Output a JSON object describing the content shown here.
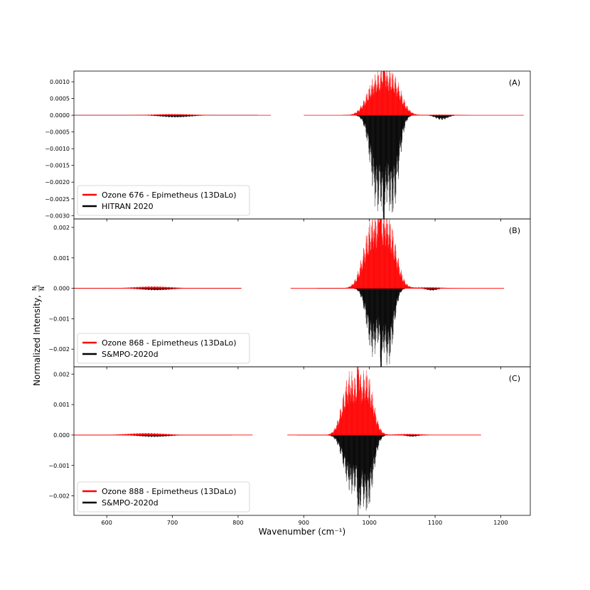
{
  "figure": {
    "xlabel": "Wavenumber (cm⁻¹)",
    "ylabel_prefix": "Normalized Intensity, ",
    "ylabel_frac_num": "N",
    "ylabel_frac_num_sub": "j",
    "ylabel_frac_den": "N"
  },
  "colors": {
    "calc": "#ff0000",
    "ref": "#000000"
  },
  "chart_data": [
    {
      "type": "line",
      "panel_label": "(A)",
      "xlim": [
        550,
        1245
      ],
      "ylim": [
        -0.0031,
        0.00132
      ],
      "xticks": [
        600,
        700,
        800,
        900,
        1000,
        1100,
        1200
      ],
      "yticks": [
        0.001,
        0.0005,
        0.0,
        -0.0005,
        -0.001,
        -0.0015,
        -0.002,
        -0.0025,
        -0.003
      ],
      "ytick_labels": [
        "0.0010",
        "0.0005",
        "0.0000",
        "−0.0005",
        "−0.0010",
        "−0.0015",
        "−0.0020",
        "−0.0025",
        "−0.0030"
      ],
      "legend_position": "lower-left",
      "series": [
        {
          "name": "Ozone 676 - Epimetheus (13DaLo)",
          "color": "#ff0000",
          "sign": 1,
          "ranges": [
            [
              550,
              850
            ],
            [
              900,
              1235
            ]
          ],
          "bands": [
            {
              "center": 1010,
              "peak": 0.00113,
              "width": 14
            },
            {
              "center": 1036,
              "peak": 0.00113,
              "width": 13
            },
            {
              "center": 1022,
              "peak": 0.00085,
              "width": 1.5
            },
            {
              "center": 700,
              "peak": 4e-05,
              "width": 30
            },
            {
              "center": 1110,
              "peak": 2e-05,
              "width": 25
            }
          ]
        },
        {
          "name": "HITRAN 2020",
          "color": "#000000",
          "sign": -1,
          "ranges": [
            [
              550,
              830
            ],
            [
              960,
              1130
            ]
          ],
          "bands": [
            {
              "center": 1012,
              "peak": 0.00285,
              "width": 10
            },
            {
              "center": 1036,
              "peak": 0.0029,
              "width": 9
            },
            {
              "center": 1022,
              "peak": 0.0018,
              "width": 1.5
            },
            {
              "center": 705,
              "peak": 7e-05,
              "width": 22
            },
            {
              "center": 1110,
              "peak": 0.00015,
              "width": 9
            }
          ]
        }
      ]
    },
    {
      "type": "line",
      "panel_label": "(B)",
      "xlim": [
        550,
        1245
      ],
      "ylim": [
        -0.00258,
        0.00228
      ],
      "xticks": [
        600,
        700,
        800,
        900,
        1000,
        1100,
        1200
      ],
      "yticks": [
        0.002,
        0.001,
        0.0,
        -0.001,
        -0.002
      ],
      "ytick_labels": [
        "0.002",
        "0.001",
        "0.000",
        "−0.001",
        "−0.002"
      ],
      "legend_position": "lower-left",
      "series": [
        {
          "name": "Ozone 868 - Epimetheus (13DaLo)",
          "color": "#ff0000",
          "sign": 1,
          "ranges": [
            [
              550,
              805
            ],
            [
              880,
              1205
            ]
          ],
          "bands": [
            {
              "center": 1004,
              "peak": 0.00222,
              "width": 13
            },
            {
              "center": 1029,
              "peak": 0.00222,
              "width": 12
            },
            {
              "center": 1016,
              "peak": 0.0013,
              "width": 1.5
            },
            {
              "center": 670,
              "peak": 7e-05,
              "width": 28
            },
            {
              "center": 1090,
              "peak": 4e-05,
              "width": 22
            }
          ]
        },
        {
          "name": "S&MPO-2020d",
          "color": "#000000",
          "sign": -1,
          "ranges": [
            [
              550,
              805
            ],
            [
              920,
              1110
            ]
          ],
          "bands": [
            {
              "center": 1005,
              "peak": 0.00225,
              "width": 9
            },
            {
              "center": 1029,
              "peak": 0.00255,
              "width": 8
            },
            {
              "center": 1018,
              "peak": 0.0019,
              "width": 1.5
            },
            {
              "center": 675,
              "peak": 7e-05,
              "width": 22
            },
            {
              "center": 1095,
              "peak": 8e-05,
              "width": 8
            }
          ]
        }
      ]
    },
    {
      "type": "line",
      "panel_label": "(C)",
      "xlim": [
        550,
        1245
      ],
      "ylim": [
        -0.00264,
        0.00224
      ],
      "xticks": [
        600,
        700,
        800,
        900,
        1000,
        1100,
        1200
      ],
      "yticks": [
        0.002,
        0.001,
        0.0,
        -0.001,
        -0.002
      ],
      "ytick_labels": [
        "0.002",
        "0.001",
        "0.000",
        "−0.001",
        "−0.002"
      ],
      "legend_position": "lower-left",
      "series": [
        {
          "name": "Ozone 888 - Epimetheus (13DaLo)",
          "color": "#ff0000",
          "sign": 1,
          "ranges": [
            [
              550,
              822
            ],
            [
              875,
              1170
            ]
          ],
          "bands": [
            {
              "center": 970,
              "peak": 0.00205,
              "width": 11
            },
            {
              "center": 996,
              "peak": 0.00205,
              "width": 10
            },
            {
              "center": 983,
              "peak": 0.0015,
              "width": 1.5
            },
            {
              "center": 660,
              "peak": 7e-05,
              "width": 28
            },
            {
              "center": 1060,
              "peak": 4e-05,
              "width": 20
            }
          ]
        },
        {
          "name": "S&MPO-2020d",
          "color": "#000000",
          "sign": -1,
          "ranges": [
            [
              550,
              790
            ],
            [
              890,
              1090
            ]
          ],
          "bands": [
            {
              "center": 972,
              "peak": 0.0019,
              "width": 11
            },
            {
              "center": 997,
              "peak": 0.00245,
              "width": 9
            },
            {
              "center": 984,
              "peak": 0.0016,
              "width": 1.5
            },
            {
              "center": 672,
              "peak": 7e-05,
              "width": 22
            },
            {
              "center": 1065,
              "peak": 6e-05,
              "width": 9
            }
          ]
        }
      ]
    }
  ]
}
